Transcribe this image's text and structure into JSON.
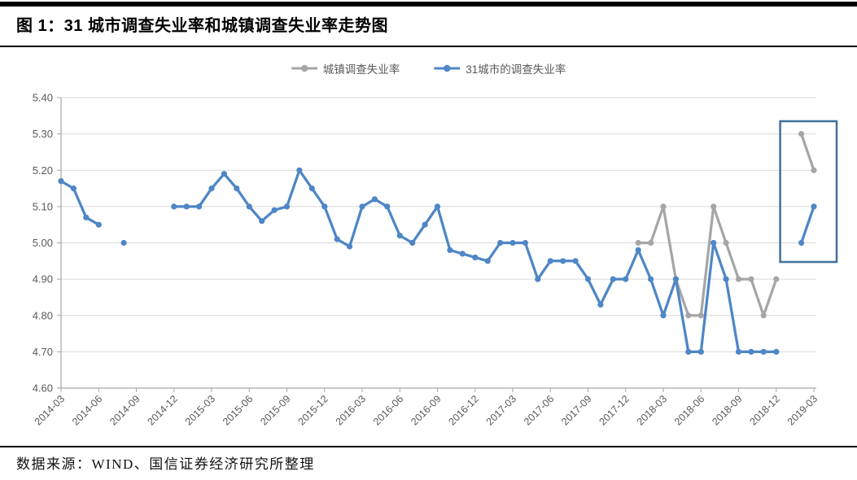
{
  "header": {
    "figure_title": "图 1：31 城市调查失业率和城镇调查失业率走势图"
  },
  "legend": [
    {
      "label": "城镇调查失业率",
      "color": "#A6A6A6"
    },
    {
      "label": "31城市的调查失业率",
      "color": "#4E86C6"
    }
  ],
  "source": "数据来源：WIND、国信证券经济研究所整理",
  "chart_data": {
    "type": "line",
    "title": "",
    "xlabel": "",
    "ylabel": "",
    "grid": true,
    "legend_position": "top-center",
    "ylim": [
      4.6,
      5.4
    ],
    "y_ticks": [
      "5.40",
      "5.30",
      "5.20",
      "5.10",
      "5.00",
      "4.90",
      "4.80",
      "4.70",
      "4.60"
    ],
    "x": [
      "2014-03",
      "2014-04",
      "2014-05",
      "2014-06",
      "2014-07",
      "2014-08",
      "2014-09",
      "2014-10",
      "2014-11",
      "2014-12",
      "2015-01",
      "2015-02",
      "2015-03",
      "2015-04",
      "2015-05",
      "2015-06",
      "2015-07",
      "2015-08",
      "2015-09",
      "2015-10",
      "2015-11",
      "2015-12",
      "2016-01",
      "2016-02",
      "2016-03",
      "2016-04",
      "2016-05",
      "2016-06",
      "2016-07",
      "2016-08",
      "2016-09",
      "2016-10",
      "2016-11",
      "2016-12",
      "2017-01",
      "2017-02",
      "2017-03",
      "2017-04",
      "2017-05",
      "2017-06",
      "2017-07",
      "2017-08",
      "2017-09",
      "2017-10",
      "2017-11",
      "2017-12",
      "2018-01",
      "2018-02",
      "2018-03",
      "2018-04",
      "2018-05",
      "2018-06",
      "2018-07",
      "2018-08",
      "2018-09",
      "2018-10",
      "2018-11",
      "2018-12",
      "2019-01",
      "2019-02",
      "2019-03"
    ],
    "x_tick_every": 3,
    "series": [
      {
        "name": "城镇调查失业率",
        "color": "#A6A6A6",
        "values": [
          null,
          null,
          null,
          null,
          null,
          null,
          null,
          null,
          null,
          null,
          null,
          null,
          null,
          null,
          null,
          null,
          null,
          null,
          null,
          null,
          null,
          null,
          null,
          null,
          null,
          null,
          null,
          null,
          null,
          null,
          null,
          null,
          null,
          null,
          null,
          null,
          null,
          null,
          null,
          null,
          null,
          null,
          null,
          null,
          null,
          null,
          5.0,
          5.0,
          5.1,
          4.9,
          4.8,
          4.8,
          5.1,
          5.0,
          4.9,
          4.9,
          4.8,
          4.9,
          null,
          5.3,
          5.2
        ]
      },
      {
        "name": "31城市的调查失业率",
        "color": "#4E86C6",
        "values": [
          5.17,
          5.15,
          5.07,
          5.05,
          null,
          5.0,
          null,
          null,
          null,
          5.1,
          5.1,
          5.1,
          5.15,
          5.19,
          5.15,
          5.1,
          5.06,
          5.09,
          5.1,
          5.2,
          5.15,
          5.1,
          5.01,
          4.99,
          5.1,
          5.12,
          5.1,
          5.02,
          5.0,
          5.05,
          5.1,
          4.98,
          4.97,
          4.96,
          4.95,
          5.0,
          5.0,
          5.0,
          4.9,
          4.95,
          4.95,
          4.95,
          4.9,
          4.83,
          4.9,
          4.9,
          4.98,
          4.9,
          4.8,
          4.9,
          4.7,
          4.7,
          5.0,
          4.9,
          4.7,
          4.7,
          4.7,
          4.7,
          null,
          5.0,
          5.1
        ]
      }
    ],
    "highlight_box": {
      "months": [
        "2019-02",
        "2019-03"
      ],
      "color": "#41719C"
    }
  }
}
